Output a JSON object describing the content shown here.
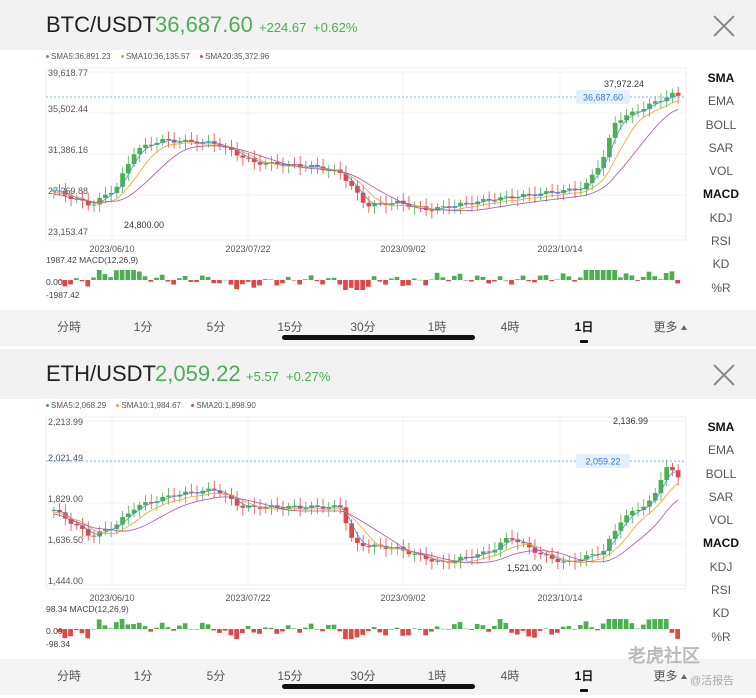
{
  "panels": [
    {
      "pair": "BTC/USDT",
      "price": "36,687.60",
      "change": "+224.67",
      "change_pct": "+0.62%",
      "legend": [
        {
          "label": "SMA5:36,891.23",
          "color": "#4a90d9"
        },
        {
          "label": "SMA10:36,135.57",
          "color": "#f0a030"
        },
        {
          "label": "SMA20:35,372.96",
          "color": "#b050b0"
        }
      ],
      "y_ticks": [
        "39,618.77",
        "35,502.44",
        "31,386.16",
        "27,269.88",
        "23,153.47"
      ],
      "x_ticks": [
        "2023/06/10",
        "2023/07/22",
        "2023/09/02",
        "2023/10/14"
      ],
      "high_label": "37,972.24",
      "low_label": "24,800.00",
      "current_tag": "36,687.60",
      "macd_label": "1987.42 MACD(12,26,9)",
      "macd_ticks": [
        "0.00",
        "-1987.42"
      ]
    },
    {
      "pair": "ETH/USDT",
      "price": "2,059.22",
      "change": "+5.57",
      "change_pct": "+0.27%",
      "legend": [
        {
          "label": "SMA5:2,068.29",
          "color": "#4a90d9"
        },
        {
          "label": "SMA10:1,984.67",
          "color": "#f0a030"
        },
        {
          "label": "SMA20:1,898.90",
          "color": "#b050b0"
        }
      ],
      "y_ticks": [
        "2,213.99",
        "2,021.49",
        "1,829.00",
        "1,636.50",
        "1,444.00"
      ],
      "x_ticks": [
        "2023/06/10",
        "2023/07/22",
        "2023/09/02",
        "2023/10/14"
      ],
      "high_label": "2,136.99",
      "low_label": "1,521.00",
      "current_tag": "2,059.22",
      "macd_label": "98.34 MACD(12,26,9)",
      "macd_ticks": [
        "0.00",
        "-98.34"
      ]
    }
  ],
  "indicators": [
    "SMA",
    "EMA",
    "BOLL",
    "SAR",
    "VOL",
    "MACD",
    "KDJ",
    "RSI",
    "KD",
    "%R"
  ],
  "active_indicators": [
    "SMA",
    "MACD"
  ],
  "timeframes": [
    "分時",
    "1分",
    "5分",
    "15分",
    "30分",
    "1時",
    "4時",
    "1日",
    "更多"
  ],
  "selected_timeframe": "1日",
  "watermark": "老虎社区",
  "watermark_sub": "@活报告",
  "colors": {
    "up": "#4caf50",
    "down": "#e04848",
    "sma5": "#4a90d9",
    "sma10": "#f0a030",
    "sma20": "#b050b0",
    "current_line": "#5aa0e6"
  }
}
